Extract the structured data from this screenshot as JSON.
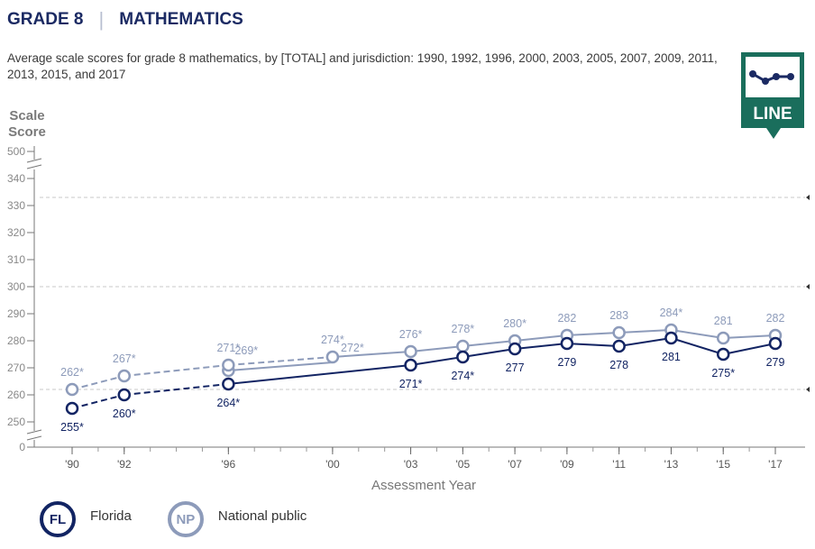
{
  "header": {
    "grade": "GRADE 8",
    "separator": "|",
    "subject": "MATHEMATICS"
  },
  "subtitle": "Average scale scores for grade 8 mathematics, by [TOTAL] and jurisdiction: 1990, 1992, 1996, 2000, 2003, 2005, 2007, 2009, 2011, 2013, 2015, and 2017",
  "chart_type_badge": {
    "label": "LINE",
    "color": "#1a6e5c",
    "icon": "line-chart-icon"
  },
  "colors": {
    "florida": "#122463",
    "national": "#8d9bba",
    "axis": "#555555",
    "grid": "#c8c8c8"
  },
  "legend": [
    {
      "abbr": "FL",
      "label": "Florida"
    },
    {
      "abbr": "NP",
      "label": "National public"
    }
  ],
  "chart_data": {
    "type": "line",
    "ylabel": [
      "Scale",
      "Score"
    ],
    "xlabel": "Assessment Year",
    "y_ticks": [
      "500",
      "340",
      "330",
      "320",
      "310",
      "300",
      "290",
      "280",
      "270",
      "260",
      "250",
      "0"
    ],
    "y_axis_breaks": [
      "between 500 and 340",
      "between 250 and 0"
    ],
    "categories": [
      "'90",
      "'92",
      "'96",
      "'00",
      "'03",
      "'05",
      "'07",
      "'09",
      "'11",
      "'13",
      "'15",
      "'17"
    ],
    "x": [
      1990,
      1992,
      1996,
      2000,
      2003,
      2005,
      2007,
      2009,
      2011,
      2013,
      2015,
      2017
    ],
    "series": [
      {
        "name": "National public",
        "values": [
          262,
          267,
          271,
          274,
          276,
          278,
          280,
          282,
          283,
          284,
          281,
          282
        ],
        "labels": [
          "262*",
          "267*",
          "271*",
          "274*",
          "276*",
          "278*",
          "280*",
          "282",
          "283",
          "284*",
          "281",
          "282"
        ],
        "extra_1996_2000": {
          "values": [
            269,
            272
          ],
          "labels": [
            "269*",
            "272*"
          ]
        },
        "dashed_through": 2000
      },
      {
        "name": "Florida",
        "values": [
          255,
          260,
          264,
          null,
          271,
          274,
          277,
          279,
          278,
          281,
          275,
          279
        ],
        "labels": [
          "255*",
          "260*",
          "264*",
          "",
          "271*",
          "274*",
          "277",
          "279",
          "278",
          "281",
          "275*",
          "279"
        ],
        "dashed_through": 1996
      }
    ],
    "grid_dashed_at": [
      333,
      300,
      262
    ]
  }
}
